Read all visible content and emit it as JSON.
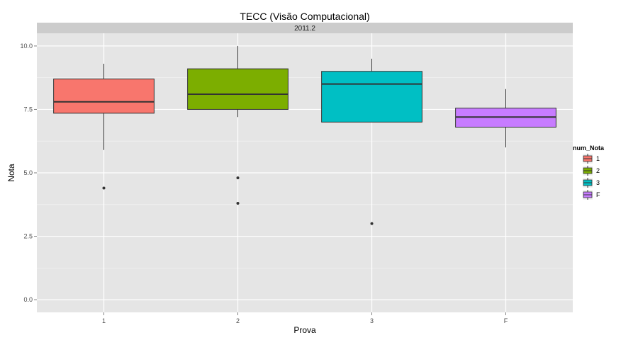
{
  "chart_data": {
    "type": "boxplot",
    "title": "TECC (Visão Computacional)",
    "facet_label": "2011.2",
    "xlabel": "Prova",
    "ylabel": "Nota",
    "ylim": [
      -0.5,
      10.5
    ],
    "y_ticks": [
      0,
      2.5,
      5,
      7.5,
      10
    ],
    "y_tick_labels": [
      "0.0",
      "2.5",
      "5.0",
      "7.5",
      "10.0"
    ],
    "categories": [
      "1",
      "2",
      "3",
      "F"
    ],
    "boxes": [
      {
        "category": "1",
        "min": 5.9,
        "q1": 7.35,
        "median": 7.8,
        "q3": 8.7,
        "max": 9.3,
        "outliers": [
          4.4
        ],
        "color": "#F8766D"
      },
      {
        "category": "2",
        "min": 7.2,
        "q1": 7.5,
        "median": 8.1,
        "q3": 9.1,
        "max": 10.0,
        "outliers": [
          4.8,
          3.8
        ],
        "color": "#7CAE00"
      },
      {
        "category": "3",
        "min": 7.0,
        "q1": 7.0,
        "median": 8.5,
        "q3": 9.0,
        "max": 9.5,
        "outliers": [
          3.0
        ],
        "color": "#00BFC4"
      },
      {
        "category": "F",
        "min": 6.0,
        "q1": 6.8,
        "median": 7.2,
        "q3": 7.55,
        "max": 8.3,
        "outliers": [],
        "color": "#C77CFF"
      }
    ],
    "legend": {
      "title": "num_Nota",
      "placement": "right",
      "entries": [
        {
          "label": "1",
          "color": "#F8766D"
        },
        {
          "label": "2",
          "color": "#7CAE00"
        },
        {
          "label": "3",
          "color": "#00BFC4"
        },
        {
          "label": "F",
          "color": "#C77CFF"
        }
      ]
    },
    "grid": true,
    "panel_background": "#E5E5E5",
    "strip_background": "#CCCCCC",
    "grid_color": "#FFFFFF"
  }
}
